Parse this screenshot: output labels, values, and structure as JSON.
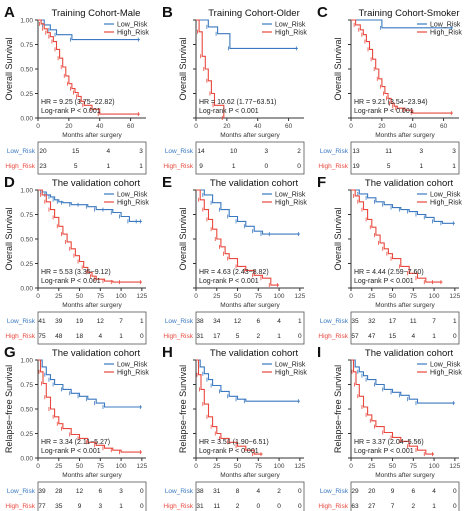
{
  "figure": {
    "colors": {
      "low": "#3a78c0",
      "high": "#e8483d",
      "axis": "#333333",
      "box": "#555555"
    },
    "legend_labels": [
      "Low_Risk",
      "High_Risk"
    ],
    "ylabel_survival": "Overall Survival",
    "ylabel_relapse": "Relapse-free Survival",
    "xlabel": "Months after surgery",
    "risk_row_labels": [
      "Low_Risk",
      "High_Risk"
    ]
  },
  "chart_data": [
    {
      "panel": "A",
      "type": "line",
      "title": "Training Cohort-Male",
      "ylabel": "Overall Survival",
      "xlabel": "Months after surgery",
      "xlim": [
        0,
        70
      ],
      "xticks": [
        0,
        20,
        40,
        60
      ],
      "ylim": [
        0,
        1
      ],
      "yticks": [
        0,
        0.25,
        0.5,
        0.75,
        1
      ],
      "ytick_labels": [
        "0.00",
        "0.25",
        "0.50",
        "0.75",
        "1.00"
      ],
      "show_yticklabels": true,
      "hr_text": "HR = 9.25 (3.75−22.82)",
      "p_text": "Log-rank P < 0.001",
      "series": [
        {
          "name": "Low_Risk",
          "x": [
            0,
            4,
            8,
            12,
            22,
            66
          ],
          "y": [
            1,
            0.95,
            0.9,
            0.85,
            0.8,
            0.8
          ]
        },
        {
          "name": "High_Risk",
          "x": [
            0,
            2,
            4,
            6,
            8,
            10,
            12,
            14,
            16,
            18,
            20,
            22,
            24,
            26,
            28,
            30,
            35,
            40,
            66
          ],
          "y": [
            1,
            0.96,
            0.91,
            0.87,
            0.83,
            0.78,
            0.7,
            0.61,
            0.52,
            0.43,
            0.35,
            0.3,
            0.26,
            0.22,
            0.17,
            0.13,
            0.09,
            0.04,
            0.04
          ]
        }
      ],
      "risk_table": {
        "cols": 4,
        "low": [
          "20",
          "15",
          "4",
          "3"
        ],
        "high": [
          "23",
          "5",
          "1",
          "1"
        ]
      }
    },
    {
      "panel": "B",
      "type": "line",
      "title": "Training Cohort-Older",
      "ylabel": "Overall Survival",
      "xlabel": "Months after surgery",
      "xlim": [
        0,
        70
      ],
      "xticks": [
        0,
        20,
        40,
        60
      ],
      "ylim": [
        0,
        1
      ],
      "yticks": [
        0,
        0.25,
        0.5,
        0.75,
        1
      ],
      "ytick_labels": [
        "0.00",
        "0.25",
        "0.50",
        "0.75",
        "1.00"
      ],
      "show_yticklabels": false,
      "hr_text": "HR = 10.62 (1.77−63.51)",
      "p_text": "Log-rank P < 0.001",
      "series": [
        {
          "name": "Low_Risk",
          "x": [
            0,
            8,
            14,
            22,
            66
          ],
          "y": [
            1,
            0.93,
            0.86,
            0.71,
            0.71
          ]
        },
        {
          "name": "High_Risk",
          "x": [
            0,
            2,
            4,
            6,
            8,
            10,
            12,
            18
          ],
          "y": [
            1,
            0.88,
            0.63,
            0.5,
            0.38,
            0.25,
            0.13,
            0
          ]
        }
      ],
      "risk_table": {
        "cols": 4,
        "low": [
          "14",
          "10",
          "3",
          "2"
        ],
        "high": [
          "9",
          "1",
          "0",
          "0"
        ]
      }
    },
    {
      "panel": "C",
      "type": "line",
      "title": "Training Cohort-Smoker",
      "ylabel": "Overall Survival",
      "xlabel": "Months after surgery",
      "xlim": [
        0,
        70
      ],
      "xticks": [
        0,
        20,
        40,
        60
      ],
      "ylim": [
        0,
        1
      ],
      "yticks": [
        0,
        0.25,
        0.5,
        0.75,
        1
      ],
      "ytick_labels": [
        "0.00",
        "0.25",
        "0.50",
        "0.75",
        "1.00"
      ],
      "show_yticklabels": false,
      "hr_text": "HR = 9.21 (3.54−23.94)",
      "p_text": "Log-rank P < 0.001",
      "series": [
        {
          "name": "Low_Risk",
          "x": [
            0,
            20,
            66
          ],
          "y": [
            1,
            0.92,
            0.92
          ]
        },
        {
          "name": "High_Risk",
          "x": [
            0,
            3,
            6,
            8,
            10,
            12,
            14,
            16,
            18,
            20,
            22,
            24,
            26,
            28,
            30,
            35,
            40,
            66
          ],
          "y": [
            1,
            0.95,
            0.9,
            0.85,
            0.78,
            0.7,
            0.6,
            0.5,
            0.4,
            0.32,
            0.25,
            0.2,
            0.15,
            0.12,
            0.1,
            0.08,
            0.05,
            0.05
          ]
        }
      ],
      "risk_table": {
        "cols": 4,
        "low": [
          "13",
          "11",
          "3",
          "3"
        ],
        "high": [
          "19",
          "5",
          "1",
          "1"
        ]
      }
    },
    {
      "panel": "D",
      "type": "line",
      "title": "The validation cohort",
      "ylabel": "Overall Survival",
      "xlabel": "Months after surgery",
      "xlim": [
        0,
        130
      ],
      "xticks": [
        0,
        25,
        50,
        75,
        100,
        125
      ],
      "ylim": [
        0,
        1
      ],
      "yticks": [
        0,
        0.25,
        0.5,
        0.75,
        1
      ],
      "ytick_labels": [
        "0.00",
        "0.25",
        "0.50",
        "0.75",
        "1.00"
      ],
      "show_yticklabels": true,
      "hr_text": "HR = 5.53 (3.35−9.12)",
      "p_text": "Log-rank P < 0.001",
      "series": [
        {
          "name": "Low_Risk",
          "x": [
            0,
            5,
            10,
            15,
            20,
            25,
            30,
            40,
            50,
            60,
            70,
            80,
            90,
            100,
            110,
            120,
            125
          ],
          "y": [
            1,
            0.98,
            0.95,
            0.93,
            0.9,
            0.88,
            0.87,
            0.85,
            0.85,
            0.83,
            0.8,
            0.8,
            0.77,
            0.73,
            0.68,
            0.68,
            0.68
          ]
        },
        {
          "name": "High_Risk",
          "x": [
            0,
            5,
            10,
            15,
            20,
            25,
            30,
            35,
            40,
            45,
            50,
            55,
            60,
            65,
            70,
            80,
            90,
            100,
            125
          ],
          "y": [
            1,
            0.95,
            0.88,
            0.8,
            0.72,
            0.63,
            0.55,
            0.47,
            0.4,
            0.33,
            0.27,
            0.21,
            0.16,
            0.12,
            0.09,
            0.07,
            0.06,
            0.06,
            0.06
          ]
        }
      ],
      "risk_table": {
        "cols": 6,
        "low": [
          "41",
          "39",
          "19",
          "12",
          "7",
          "1"
        ],
        "high": [
          "75",
          "48",
          "18",
          "4",
          "1",
          "0"
        ]
      }
    },
    {
      "panel": "E",
      "type": "line",
      "title": "The validation cohort",
      "ylabel": "Overall Survival",
      "xlabel": "Months after surgery",
      "xlim": [
        0,
        130
      ],
      "xticks": [
        0,
        25,
        50,
        75,
        100,
        125
      ],
      "ylim": [
        0,
        1
      ],
      "yticks": [
        0,
        0.25,
        0.5,
        0.75,
        1
      ],
      "ytick_labels": [
        "0.00",
        "0.25",
        "0.50",
        "0.75",
        "1.00"
      ],
      "show_yticklabels": false,
      "hr_text": "HR = 4.63 (2.43−8.82)",
      "p_text": "Log-rank P < 0.001",
      "series": [
        {
          "name": "Low_Risk",
          "x": [
            0,
            10,
            20,
            30,
            40,
            50,
            60,
            70,
            80,
            90,
            125
          ],
          "y": [
            1,
            0.95,
            0.87,
            0.8,
            0.73,
            0.68,
            0.63,
            0.58,
            0.55,
            0.55,
            0.55
          ]
        },
        {
          "name": "High_Risk",
          "x": [
            0,
            5,
            10,
            15,
            20,
            25,
            30,
            35,
            40,
            50,
            60,
            70,
            80,
            90,
            100
          ],
          "y": [
            1,
            0.9,
            0.8,
            0.7,
            0.6,
            0.5,
            0.42,
            0.35,
            0.3,
            0.22,
            0.18,
            0.13,
            0.1,
            0.03,
            0.03
          ]
        }
      ],
      "risk_table": {
        "cols": 6,
        "low": [
          "38",
          "34",
          "12",
          "6",
          "4",
          "1"
        ],
        "high": [
          "31",
          "17",
          "5",
          "2",
          "1",
          "0"
        ]
      }
    },
    {
      "panel": "F",
      "type": "line",
      "title": "The validation cohort",
      "ylabel": "Overall Survival",
      "xlabel": "Months after surgery",
      "xlim": [
        0,
        130
      ],
      "xticks": [
        0,
        25,
        50,
        75,
        100,
        125
      ],
      "ylim": [
        0,
        1
      ],
      "yticks": [
        0,
        0.25,
        0.5,
        0.75,
        1
      ],
      "ytick_labels": [
        "0.00",
        "0.25",
        "0.50",
        "0.75",
        "1.00"
      ],
      "show_yticklabels": false,
      "hr_text": "HR = 4.44 (2.59−7.60)",
      "p_text": "Log-rank P < 0.001",
      "series": [
        {
          "name": "Low_Risk",
          "x": [
            0,
            10,
            20,
            30,
            40,
            50,
            60,
            70,
            80,
            90,
            100,
            110,
            125
          ],
          "y": [
            1,
            0.96,
            0.92,
            0.88,
            0.85,
            0.82,
            0.8,
            0.78,
            0.75,
            0.72,
            0.68,
            0.66,
            0.66
          ]
        },
        {
          "name": "High_Risk",
          "x": [
            0,
            5,
            10,
            15,
            20,
            25,
            30,
            35,
            40,
            45,
            50,
            60,
            70,
            80,
            90,
            100,
            110
          ],
          "y": [
            1,
            0.94,
            0.88,
            0.8,
            0.7,
            0.62,
            0.54,
            0.46,
            0.4,
            0.35,
            0.3,
            0.22,
            0.15,
            0.1,
            0.06,
            0.06,
            0.06
          ]
        }
      ],
      "risk_table": {
        "cols": 6,
        "low": [
          "35",
          "32",
          "17",
          "11",
          "7",
          "1"
        ],
        "high": [
          "57",
          "47",
          "15",
          "4",
          "1",
          "0"
        ]
      }
    },
    {
      "panel": "G",
      "type": "line",
      "title": "The validation cohort",
      "ylabel": "Relapse−free Survival",
      "xlabel": "Months after surgery",
      "xlim": [
        0,
        130
      ],
      "xticks": [
        0,
        25,
        50,
        75,
        100,
        125
      ],
      "ylim": [
        0,
        1
      ],
      "yticks": [
        0,
        0.25,
        0.5,
        0.75,
        1
      ],
      "ytick_labels": [
        "0.00",
        "0.25",
        "0.50",
        "0.75",
        "1.00"
      ],
      "show_yticklabels": true,
      "hr_text": "HR = 3.34 (2.11−5.27)",
      "p_text": "Log-rank P < 0.001",
      "series": [
        {
          "name": "Low_Risk",
          "x": [
            0,
            5,
            10,
            15,
            20,
            30,
            40,
            50,
            60,
            70,
            80,
            125
          ],
          "y": [
            1,
            0.93,
            0.85,
            0.8,
            0.75,
            0.7,
            0.66,
            0.63,
            0.6,
            0.56,
            0.52,
            0.52
          ]
        },
        {
          "name": "High_Risk",
          "x": [
            0,
            3,
            6,
            10,
            15,
            20,
            25,
            30,
            40,
            50,
            60,
            70,
            80,
            90,
            100,
            125
          ],
          "y": [
            1,
            0.88,
            0.76,
            0.62,
            0.5,
            0.42,
            0.35,
            0.3,
            0.24,
            0.2,
            0.16,
            0.13,
            0.1,
            0.08,
            0.06,
            0.06
          ]
        }
      ],
      "risk_table": {
        "cols": 6,
        "low": [
          "39",
          "28",
          "12",
          "6",
          "3",
          "0"
        ],
        "high": [
          "77",
          "35",
          "9",
          "3",
          "1",
          "0"
        ]
      }
    },
    {
      "panel": "H",
      "type": "line",
      "title": "The validation cohort",
      "ylabel": "Relapse−free Survival",
      "xlabel": "Months after surgery",
      "xlim": [
        0,
        130
      ],
      "xticks": [
        0,
        25,
        50,
        75,
        100,
        125
      ],
      "ylim": [
        0,
        1
      ],
      "yticks": [
        0,
        0.25,
        0.5,
        0.75,
        1
      ],
      "ytick_labels": [
        "0.00",
        "0.25",
        "0.50",
        "0.75",
        "1.00"
      ],
      "show_yticklabels": false,
      "hr_text": "HR = 3.51 (1.90−6.51)",
      "p_text": "Log-rank P < 0.001",
      "series": [
        {
          "name": "Low_Risk",
          "x": [
            0,
            5,
            10,
            15,
            20,
            30,
            40,
            50,
            60,
            125
          ],
          "y": [
            1,
            0.93,
            0.86,
            0.8,
            0.74,
            0.68,
            0.63,
            0.6,
            0.58,
            0.58
          ]
        },
        {
          "name": "High_Risk",
          "x": [
            0,
            3,
            6,
            10,
            15,
            20,
            25,
            30,
            40,
            50,
            60,
            70,
            80
          ],
          "y": [
            1,
            0.85,
            0.7,
            0.55,
            0.42,
            0.32,
            0.25,
            0.2,
            0.16,
            0.12,
            0.08,
            0.04,
            0.04
          ]
        }
      ],
      "risk_table": {
        "cols": 6,
        "low": [
          "38",
          "31",
          "8",
          "4",
          "2",
          "0"
        ],
        "high": [
          "31",
          "11",
          "2",
          "0",
          "0",
          "0"
        ]
      }
    },
    {
      "panel": "I",
      "type": "line",
      "title": "The validation cohort",
      "ylabel": "Relapse−free Survival",
      "xlabel": "Months after surgery",
      "xlim": [
        0,
        130
      ],
      "xticks": [
        0,
        25,
        50,
        75,
        100,
        125
      ],
      "ylim": [
        0,
        1
      ],
      "yticks": [
        0,
        0.25,
        0.5,
        0.75,
        1
      ],
      "ytick_labels": [
        "0.00",
        "0.25",
        "0.50",
        "0.75",
        "1.00"
      ],
      "show_yticklabels": false,
      "hr_text": "HR = 3.37 (2.04−5.56)",
      "p_text": "Log-rank P < 0.001",
      "series": [
        {
          "name": "Low_Risk",
          "x": [
            0,
            5,
            10,
            15,
            20,
            30,
            40,
            50,
            60,
            70,
            80,
            125
          ],
          "y": [
            1,
            0.93,
            0.88,
            0.84,
            0.8,
            0.75,
            0.7,
            0.67,
            0.64,
            0.6,
            0.56,
            0.56
          ]
        },
        {
          "name": "High_Risk",
          "x": [
            0,
            3,
            6,
            10,
            15,
            20,
            25,
            30,
            40,
            50,
            60,
            70,
            80,
            90,
            100
          ],
          "y": [
            1,
            0.88,
            0.75,
            0.63,
            0.52,
            0.44,
            0.38,
            0.32,
            0.26,
            0.21,
            0.17,
            0.12,
            0.08,
            0.04,
            0.04
          ]
        }
      ],
      "risk_table": {
        "cols": 6,
        "low": [
          "29",
          "20",
          "9",
          "6",
          "4",
          "0"
        ],
        "high": [
          "63",
          "27",
          "7",
          "2",
          "1",
          "0"
        ]
      }
    }
  ]
}
